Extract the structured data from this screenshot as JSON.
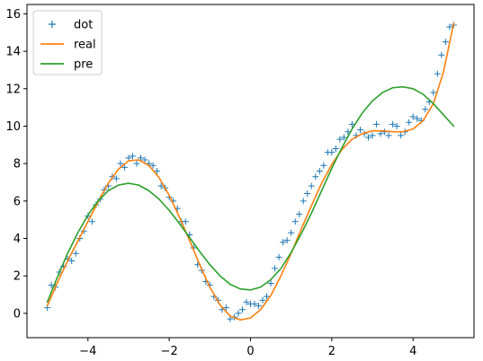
{
  "chart_data": {
    "type": "line",
    "title": "",
    "xlabel": "",
    "ylabel": "",
    "xlim": [
      -5.5,
      5.5
    ],
    "ylim": [
      -1.3,
      16.5
    ],
    "xticks": [
      -4,
      -2,
      0,
      2,
      4
    ],
    "xtick_labels": [
      "−4",
      "−2",
      "0",
      "2",
      "4"
    ],
    "yticks": [
      0,
      2,
      4,
      6,
      8,
      10,
      12,
      14,
      16
    ],
    "ytick_labels": [
      "0",
      "2",
      "4",
      "6",
      "8",
      "10",
      "12",
      "14",
      "16"
    ],
    "grid": false,
    "legend_position": "top-left",
    "series": [
      {
        "name": "dot",
        "kind": "scatter",
        "marker": "+",
        "color": "#1f77b4",
        "x": [
          -5.0,
          -4.9,
          -4.8,
          -4.7,
          -4.6,
          -4.5,
          -4.4,
          -4.3,
          -4.2,
          -4.1,
          -4.0,
          -3.9,
          -3.8,
          -3.7,
          -3.6,
          -3.5,
          -3.4,
          -3.3,
          -3.2,
          -3.1,
          -3.0,
          -2.9,
          -2.8,
          -2.7,
          -2.6,
          -2.5,
          -2.4,
          -2.3,
          -2.2,
          -2.1,
          -2.0,
          -1.9,
          -1.8,
          -1.7,
          -1.6,
          -1.5,
          -1.4,
          -1.3,
          -1.2,
          -1.1,
          -1.0,
          -0.9,
          -0.8,
          -0.7,
          -0.6,
          -0.5,
          -0.4,
          -0.3,
          -0.2,
          -0.1,
          0.0,
          0.1,
          0.2,
          0.3,
          0.4,
          0.5,
          0.6,
          0.7,
          0.8,
          0.9,
          1.0,
          1.1,
          1.2,
          1.3,
          1.4,
          1.5,
          1.6,
          1.7,
          1.8,
          1.9,
          2.0,
          2.1,
          2.2,
          2.3,
          2.4,
          2.5,
          2.6,
          2.7,
          2.8,
          2.9,
          3.0,
          3.1,
          3.2,
          3.3,
          3.4,
          3.5,
          3.6,
          3.7,
          3.8,
          3.9,
          4.0,
          4.1,
          4.2,
          4.3,
          4.4,
          4.5,
          4.6,
          4.7,
          4.8,
          4.9,
          5.0
        ],
        "y": [
          0.3,
          1.5,
          1.4,
          2.2,
          2.5,
          2.9,
          2.8,
          3.2,
          4.0,
          4.4,
          5.2,
          4.9,
          5.8,
          6.1,
          6.6,
          6.8,
          7.3,
          7.2,
          8.0,
          7.8,
          8.3,
          8.4,
          8.0,
          8.3,
          8.2,
          8.0,
          7.9,
          7.6,
          6.8,
          6.7,
          6.2,
          6.0,
          5.6,
          4.9,
          4.9,
          4.2,
          3.5,
          2.6,
          2.3,
          1.7,
          1.5,
          0.9,
          0.7,
          0.2,
          0.3,
          -0.3,
          -0.2,
          0.0,
          0.2,
          0.6,
          0.5,
          0.5,
          0.4,
          0.7,
          0.9,
          1.6,
          2.4,
          3.0,
          3.8,
          3.9,
          4.3,
          4.9,
          5.3,
          6.0,
          6.4,
          6.8,
          7.3,
          7.6,
          7.9,
          8.6,
          8.6,
          8.8,
          9.3,
          9.4,
          9.7,
          10.1,
          9.5,
          9.8,
          9.6,
          9.4,
          9.5,
          10.1,
          9.6,
          9.7,
          9.5,
          10.1,
          10.0,
          9.5,
          9.7,
          10.2,
          10.5,
          10.4,
          10.3,
          10.9,
          11.3,
          11.8,
          12.8,
          13.8,
          14.5,
          15.3,
          15.4
        ]
      },
      {
        "name": "real",
        "kind": "line",
        "color": "#ff7f0e",
        "x": [
          -5.0,
          -4.75,
          -4.5,
          -4.25,
          -4.0,
          -3.75,
          -3.5,
          -3.25,
          -3.0,
          -2.75,
          -2.5,
          -2.25,
          -2.0,
          -1.75,
          -1.5,
          -1.25,
          -1.0,
          -0.75,
          -0.5,
          -0.25,
          0.0,
          0.25,
          0.5,
          0.75,
          1.0,
          1.25,
          1.5,
          1.75,
          2.0,
          2.25,
          2.5,
          2.75,
          3.0,
          3.25,
          3.5,
          3.75,
          4.0,
          4.25,
          4.5,
          4.75,
          5.0
        ],
        "y": [
          0.4,
          1.65,
          2.8,
          3.85,
          4.9,
          5.95,
          6.95,
          7.7,
          8.15,
          8.2,
          7.9,
          7.25,
          6.3,
          5.15,
          3.9,
          2.6,
          1.4,
          0.45,
          -0.15,
          -0.35,
          -0.25,
          0.2,
          0.95,
          2.0,
          3.2,
          4.5,
          5.75,
          6.95,
          7.95,
          8.75,
          9.3,
          9.6,
          9.75,
          9.75,
          9.7,
          9.7,
          9.85,
          10.3,
          11.2,
          12.9,
          15.5
        ]
      },
      {
        "name": "pre",
        "kind": "line",
        "color": "#2ca02c",
        "x": [
          -5.0,
          -4.75,
          -4.5,
          -4.25,
          -4.0,
          -3.75,
          -3.5,
          -3.25,
          -3.0,
          -2.75,
          -2.5,
          -2.25,
          -2.0,
          -1.75,
          -1.5,
          -1.25,
          -1.0,
          -0.75,
          -0.5,
          -0.25,
          0.0,
          0.25,
          0.5,
          0.75,
          1.0,
          1.25,
          1.5,
          1.75,
          2.0,
          2.25,
          2.5,
          2.75,
          3.0,
          3.25,
          3.5,
          3.75,
          4.0,
          4.25,
          4.5,
          4.75,
          5.0
        ],
        "y": [
          0.6,
          1.95,
          3.2,
          4.3,
          5.25,
          6.0,
          6.55,
          6.85,
          6.95,
          6.85,
          6.55,
          6.1,
          5.5,
          4.8,
          4.05,
          3.3,
          2.6,
          2.0,
          1.55,
          1.3,
          1.25,
          1.4,
          1.8,
          2.4,
          3.25,
          4.25,
          5.35,
          6.55,
          7.75,
          8.85,
          9.85,
          10.7,
          11.35,
          11.8,
          12.05,
          12.1,
          12.0,
          11.7,
          11.2,
          10.6,
          10.0
        ]
      }
    ]
  }
}
